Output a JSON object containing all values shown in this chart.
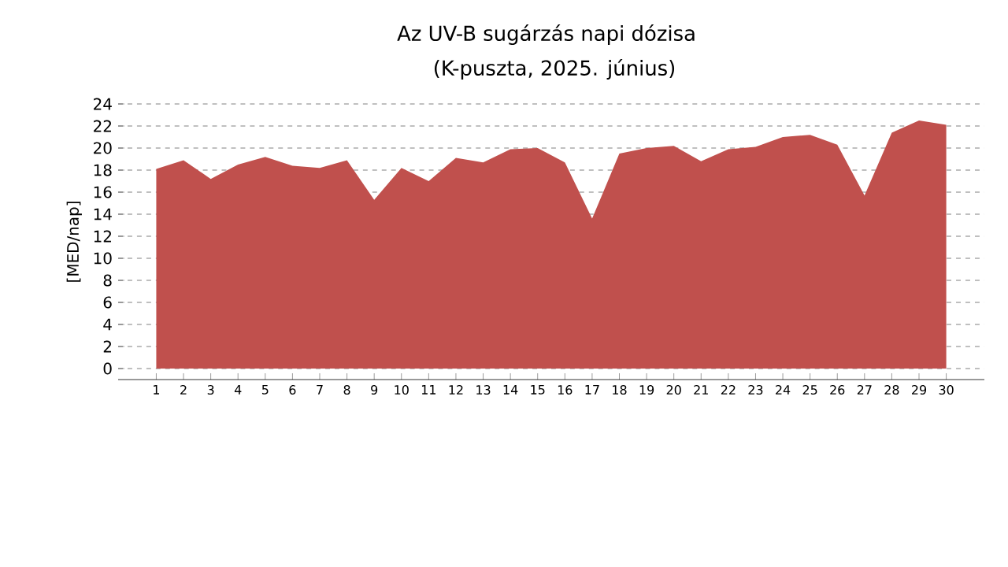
{
  "chart_data": {
    "type": "area",
    "title": "Az UV-B sugárzás napi dózisa",
    "subtitle": "(K-puszta, 2025. június)",
    "ylabel": "[MED/nap]",
    "categories": [
      "1",
      "2",
      "3",
      "4",
      "5",
      "6",
      "7",
      "8",
      "9",
      "10",
      "11",
      "12",
      "13",
      "14",
      "15",
      "16",
      "17",
      "18",
      "19",
      "20",
      "21",
      "22",
      "23",
      "24",
      "25",
      "26",
      "27",
      "28",
      "29",
      "30"
    ],
    "values": [
      18.1,
      18.9,
      17.2,
      18.5,
      19.2,
      18.4,
      18.2,
      18.9,
      15.3,
      18.2,
      17.0,
      19.1,
      18.7,
      19.9,
      20.0,
      18.7,
      13.6,
      19.5,
      20.0,
      20.2,
      18.8,
      19.9,
      20.1,
      21.0,
      21.2,
      20.3,
      15.7,
      21.4,
      22.5,
      22.1
    ],
    "color": "#c0504d",
    "ylim": [
      -1,
      24
    ],
    "yticks": [
      0,
      2,
      4,
      6,
      8,
      10,
      12,
      14,
      16,
      18,
      20,
      22,
      24
    ],
    "grid": "y"
  }
}
